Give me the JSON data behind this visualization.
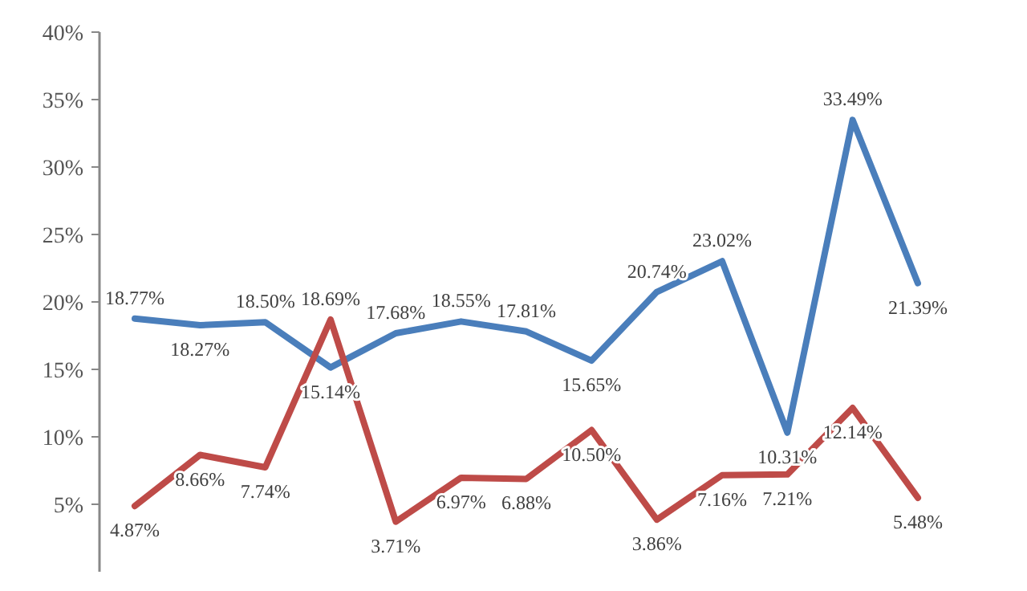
{
  "chart_data": {
    "type": "line",
    "categories": [
      null,
      null,
      null,
      null,
      null,
      null,
      null,
      null,
      null,
      null,
      null,
      null,
      null
    ],
    "series": [
      {
        "color": "#4a7ebb",
        "values": [
          18.77,
          18.27,
          18.5,
          15.14,
          17.68,
          18.55,
          17.81,
          15.65,
          20.74,
          23.02,
          10.31,
          33.49,
          21.39
        ],
        "value_labels": [
          "18.77%",
          "18.27%",
          "18.50%",
          "15.14%",
          "17.68%",
          "18.55%",
          "17.81%",
          "15.65%",
          "20.74%",
          "23.02%",
          "10.31%",
          "33.49%",
          "21.39%"
        ]
      },
      {
        "color": "#be4b48",
        "values": [
          4.87,
          8.66,
          7.74,
          18.69,
          3.71,
          6.97,
          6.88,
          10.5,
          3.86,
          7.16,
          7.21,
          12.14,
          5.48
        ],
        "value_labels": [
          "4.87%",
          "8.66%",
          "7.74%",
          "18.69%",
          "3.71%",
          "6.97%",
          "6.88%",
          "10.50%",
          "3.86%",
          "7.16%",
          "7.21%",
          "12.14%",
          "5.48%"
        ]
      }
    ],
    "ylim": [
      0,
      40
    ],
    "yticks": [
      {
        "value": 5,
        "label": "5%"
      },
      {
        "value": 10,
        "label": "10%"
      },
      {
        "value": 15,
        "label": "15%"
      },
      {
        "value": 20,
        "label": "20%"
      },
      {
        "value": 25,
        "label": "25%"
      },
      {
        "value": 30,
        "label": "30%"
      },
      {
        "value": 35,
        "label": "35%"
      },
      {
        "value": 40,
        "label": "40%"
      }
    ],
    "grid": false,
    "marker": "none",
    "line_style": "solid"
  }
}
